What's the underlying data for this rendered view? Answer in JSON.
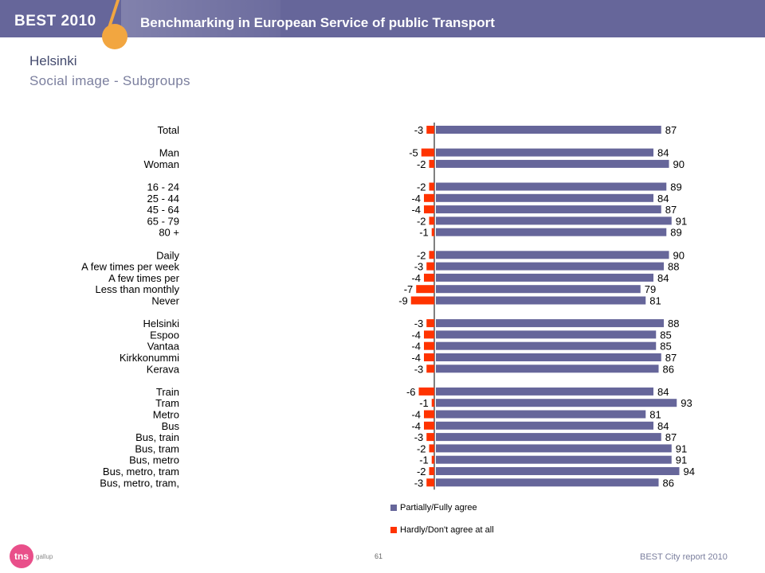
{
  "header": {
    "brand": "BEST 2010",
    "title": "Benchmarking in European Service of public Transport"
  },
  "page": {
    "city": "Helsinki",
    "subtitle": "Social image - Subgroups"
  },
  "colors": {
    "header_bg": "#66669a",
    "accent": "#f2a640",
    "agree": "#66669a",
    "disagree": "#ff3300"
  },
  "legend": {
    "agree_label": "Partially/Fully agree",
    "disagree_label": "Hardly/Don't agree at all"
  },
  "footer": {
    "page_number": "61",
    "report": "BEST City report 2010",
    "logo": "tns",
    "logo_sub": "gallup"
  },
  "chart_data": {
    "type": "bar",
    "orientation": "horizontal-diverging",
    "categories": [
      "Total",
      "Man",
      "Woman",
      "16 - 24",
      "25 - 44",
      "45 - 64",
      "65 - 79",
      "80 +",
      "Daily",
      "A few times per week",
      "A few times per",
      "Less than monthly",
      "Never",
      "Helsinki",
      "Espoo",
      "Vantaa",
      "Kirkkonummi",
      "Kerava",
      "Train",
      "Tram",
      "Metro",
      "Bus",
      "Bus, train",
      "Bus, tram",
      "Bus, metro",
      "Bus, metro, tram",
      "Bus, metro, tram,"
    ],
    "groups": [
      1,
      2,
      2,
      3,
      3,
      3,
      3,
      3,
      4,
      4,
      4,
      4,
      4,
      5,
      5,
      5,
      5,
      5,
      6,
      6,
      6,
      6,
      6,
      6,
      6,
      6,
      6
    ],
    "series": [
      {
        "name": "Partially/Fully agree",
        "values": [
          87,
          84,
          90,
          89,
          84,
          87,
          91,
          89,
          90,
          88,
          84,
          79,
          81,
          88,
          85,
          85,
          87,
          86,
          84,
          93,
          81,
          84,
          87,
          91,
          91,
          94,
          86
        ]
      },
      {
        "name": "Hardly/Don't agree at all",
        "values": [
          -3,
          -5,
          -2,
          -2,
          -4,
          -4,
          -2,
          -1,
          -2,
          -3,
          -4,
          -7,
          -9,
          -3,
          -4,
          -4,
          -4,
          -3,
          -6,
          -1,
          -4,
          -4,
          -3,
          -2,
          -1,
          -2,
          -3
        ]
      }
    ],
    "legend_position": "bottom",
    "grid": false
  }
}
